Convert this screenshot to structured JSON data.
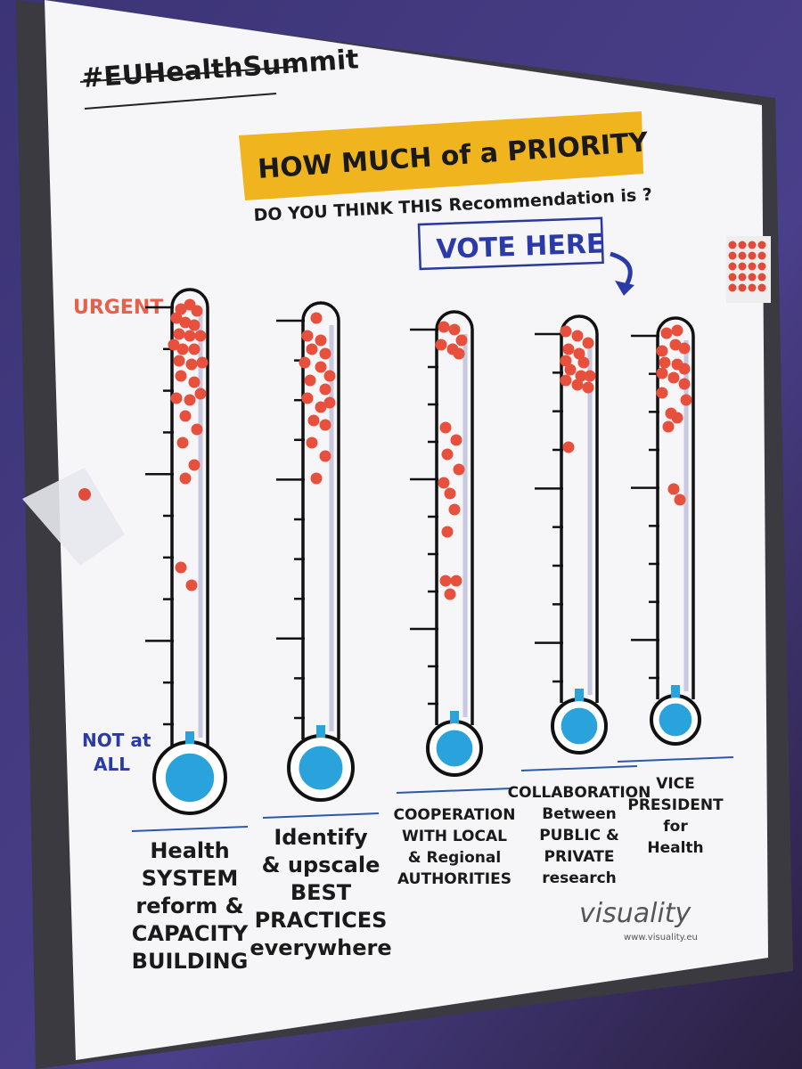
{
  "hashtag": "#EUHealthSummit",
  "heading": {
    "line1": "HOW MUCH of a PRIORITY",
    "line2": "DO YOU THINK THIS Recommendation is ?"
  },
  "vote": "VOTE HERE",
  "scale": {
    "top": "URGENT",
    "bottom": [
      "NOT at",
      "ALL"
    ]
  },
  "thermometers": [
    {
      "label": [
        "Health",
        "SYSTEM",
        "reform &",
        "CAPACITY",
        "BUILDING"
      ]
    },
    {
      "label": [
        "Identify",
        "& upscale",
        "BEST",
        "PRACTICES",
        "everywhere"
      ]
    },
    {
      "label": [
        "COOPERATION",
        "WITH LOCAL",
        "& Regional",
        "AUTHORITIES"
      ]
    },
    {
      "label": [
        "COLLABORATION",
        "Between",
        "PUBLIC &",
        "PRIVATE",
        "research"
      ]
    },
    {
      "label": [
        "VICE",
        "PRESIDENT",
        "for",
        "Health"
      ]
    }
  ],
  "footer": {
    "brand": "visuality",
    "url": "www.visuality.eu"
  }
}
